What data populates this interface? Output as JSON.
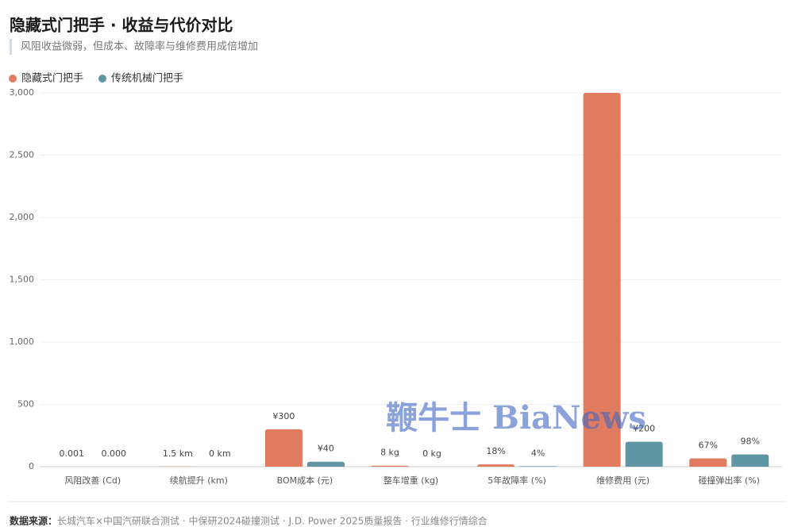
{
  "chart_data": {
    "type": "bar",
    "title": "隐藏式门把手 · 收益与代价对比",
    "subtitle": "风阻收益微弱，但成本、故障率与维修费用成倍增加",
    "categories": [
      "风阻改善 (Cd)",
      "续航提升 (km)",
      "BOM成本 (元)",
      "整车增重 (kg)",
      "5年故障率 (%)",
      "维修费用 (元)",
      "碰撞弹出率 (%)"
    ],
    "series": [
      {
        "name": "隐藏式门把手",
        "color": "#e07b60",
        "values": [
          0.001,
          1.5,
          300,
          8,
          18,
          3000,
          67
        ],
        "value_labels": [
          "0.001",
          "1.5 km",
          "¥300",
          "8 kg",
          "18%",
          null,
          "67%"
        ]
      },
      {
        "name": "传统机械门把手",
        "color": "#5e97a3",
        "values": [
          0,
          0,
          40,
          0,
          4,
          200,
          98
        ],
        "value_labels": [
          "0.000",
          "0 km",
          "¥40",
          "0 kg",
          "4%",
          "¥200",
          "98%"
        ]
      }
    ],
    "ylim": [
      0,
      3000
    ],
    "yticks": [
      0,
      500,
      {
        "value": 1000,
        "label": "1,000"
      },
      {
        "value": 1500,
        "label": "1,500"
      },
      {
        "value": 2000,
        "label": "2,000"
      },
      {
        "value": 2500,
        "label": "2,500"
      },
      {
        "value": 3000,
        "label": "3,000"
      }
    ],
    "grid": true,
    "legend": "top-left",
    "watermark": "鞭牛士 BiaNews",
    "source_label": "数据来源：",
    "source": "长城汽车×中国汽研联合测试 · 中保研2024碰撞测试 · J.D. Power 2025质量报告 · 行业维修行情综合"
  }
}
